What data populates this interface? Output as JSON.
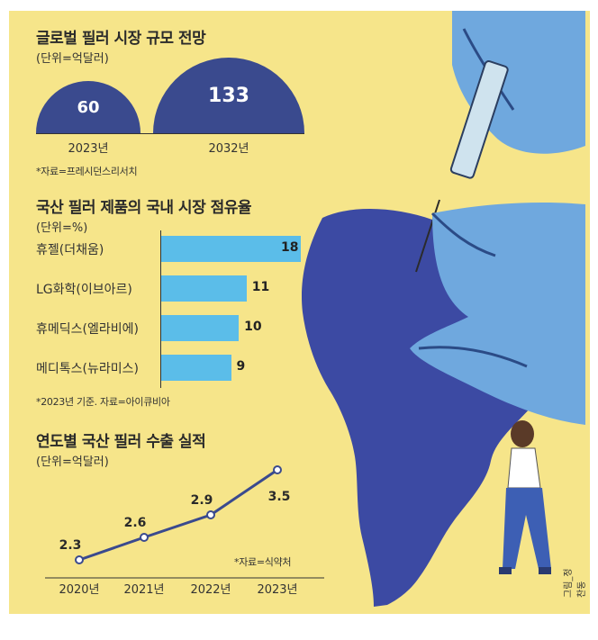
{
  "section1": {
    "title": "글로벌 필러 시장 규모 전망",
    "unit": "(단위=억달러)",
    "source": "*자료=프레시던스리서치",
    "years": [
      "2023년",
      "2032년"
    ],
    "values": [
      60,
      133
    ],
    "value_labels": [
      "60",
      "133"
    ]
  },
  "section2": {
    "title": "국산 필러 제품의 국내 시장 점유율",
    "unit": "(단위=%)",
    "note": "*2023년 기준. 자료=아이큐비아",
    "bars": [
      {
        "label": "휴젤(더채움)",
        "value": 18,
        "value_label": "18"
      },
      {
        "label": "LG화학(이브아르)",
        "value": 11,
        "value_label": "11"
      },
      {
        "label": "휴메딕스(엘라비에)",
        "value": 10,
        "value_label": "10"
      },
      {
        "label": "메디톡스(뉴라미스)",
        "value": 9,
        "value_label": "9"
      }
    ]
  },
  "section3": {
    "title": "연도별 국산 필러 수출 실적",
    "unit": "(단위=억달러)",
    "source": "*자료=식약처",
    "years": [
      "2020년",
      "2021년",
      "2022년",
      "2023년"
    ],
    "values": [
      2.3,
      2.6,
      2.9,
      3.5
    ],
    "value_labels": [
      "2.3",
      "2.6",
      "2.9",
      "3.5"
    ]
  },
  "credit": "그림_정찬동",
  "colors": {
    "background": "#f6e58a",
    "dome": "#3a4a8e",
    "bar": "#5bbde9",
    "line": "#3a4a8e",
    "continent": "#3c4aa3",
    "glove": "#6fa8de"
  },
  "chart_data": [
    {
      "type": "bar",
      "title": "글로벌 필러 시장 규모 전망",
      "unit": "(단위=억달러)",
      "categories": [
        "2023년",
        "2032년"
      ],
      "values": [
        60,
        133
      ],
      "source": "*자료=프레시던스리서치"
    },
    {
      "type": "bar",
      "orientation": "horizontal",
      "title": "국산 필러 제품의 국내 시장 점유율",
      "unit": "(단위=%)",
      "categories": [
        "휴젤(더채움)",
        "LG화학(이브아르)",
        "휴메딕스(엘라비에)",
        "메디톡스(뉴라미스)"
      ],
      "values": [
        18,
        11,
        10,
        9
      ],
      "note": "*2023년 기준. 자료=아이큐비아"
    },
    {
      "type": "line",
      "title": "연도별 국산 필러 수출 실적",
      "unit": "(단위=억달러)",
      "x": [
        "2020년",
        "2021년",
        "2022년",
        "2023년"
      ],
      "values": [
        2.3,
        2.6,
        2.9,
        3.5
      ],
      "source": "*자료=식약처"
    }
  ]
}
